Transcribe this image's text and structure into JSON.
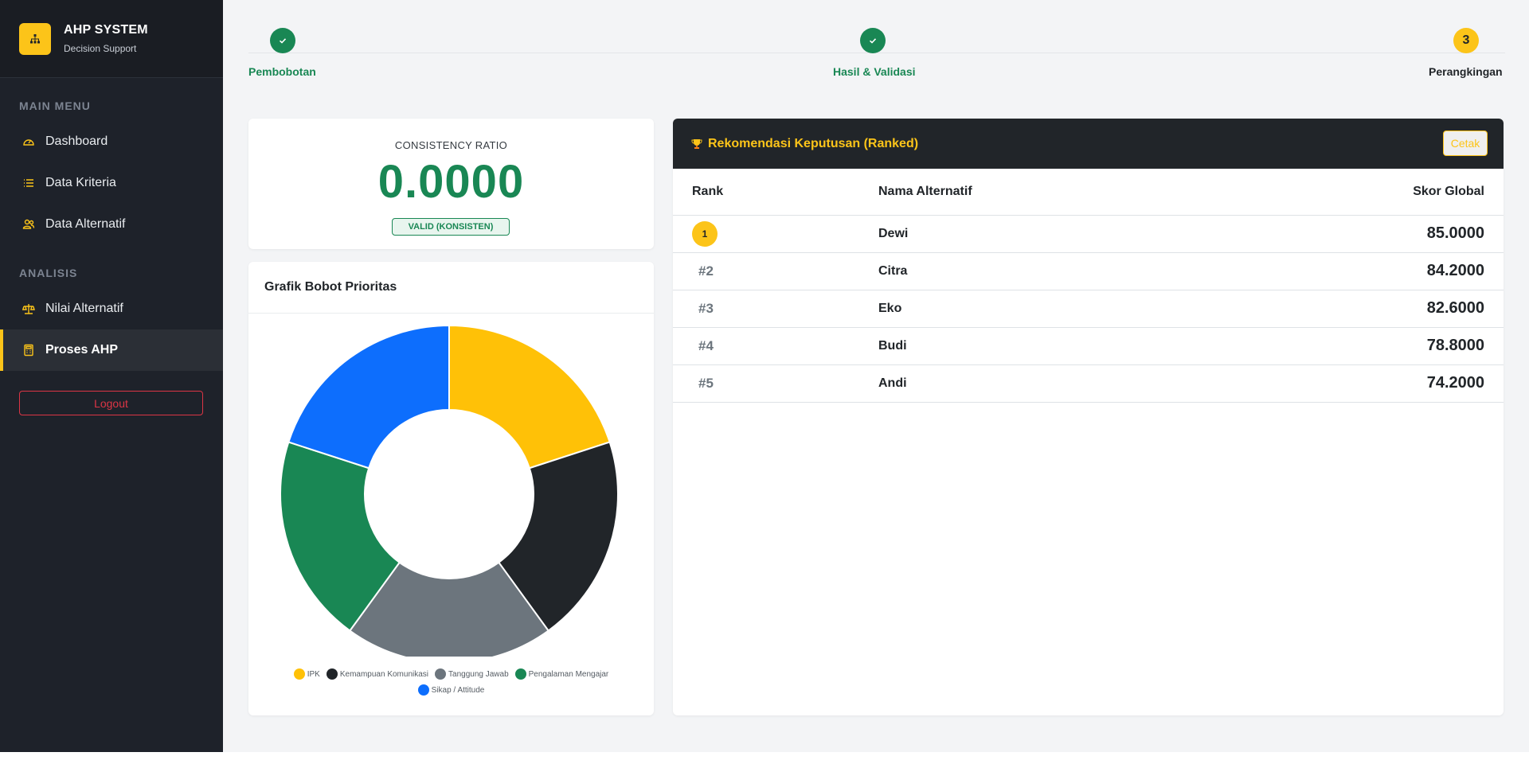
{
  "brand": {
    "title": "AHP SYSTEM",
    "subtitle": "Decision Support"
  },
  "sidebar": {
    "sections": [
      {
        "label": "MAIN MENU"
      },
      {
        "label": "ANALISIS"
      }
    ],
    "items": [
      {
        "label": "Dashboard",
        "icon": "speedometer-icon"
      },
      {
        "label": "Data Kriteria",
        "icon": "list-icon"
      },
      {
        "label": "Data Alternatif",
        "icon": "people-icon"
      },
      {
        "label": "Nilai Alternatif",
        "icon": "scale-icon"
      },
      {
        "label": "Proses AHP",
        "icon": "calculator-icon",
        "active": true
      }
    ],
    "logout_label": "Logout"
  },
  "stepper": {
    "steps": [
      {
        "label": "Pembobotan",
        "state": "done"
      },
      {
        "label": "Hasil & Validasi",
        "state": "done"
      },
      {
        "label": "Perangkingan",
        "state": "current",
        "number": "3"
      }
    ]
  },
  "consistency": {
    "title": "CONSISTENCY RATIO",
    "value": "0.0000",
    "badge": "VALID (KONSISTEN)"
  },
  "chart_card": {
    "title": "Grafik Bobot Prioritas"
  },
  "chart_data": {
    "type": "pie",
    "donut": true,
    "title": "",
    "categories": [
      "IPK",
      "Kemampuan Komunikasi",
      "Tanggung Jawab",
      "Pengalaman Mengajar",
      "Sikap / Attitude"
    ],
    "values": [
      0.2,
      0.2,
      0.2,
      0.2,
      0.2
    ],
    "colors": [
      "#ffc107",
      "#212529",
      "#6c757d",
      "#198754",
      "#0d6efd"
    ],
    "legend": "bottom"
  },
  "ranking": {
    "title": "Rekomendasi Keputusan (Ranked)",
    "print_label": "Cetak",
    "columns": [
      "Rank",
      "Nama Alternatif",
      "Skor Global"
    ],
    "rows": [
      {
        "rank": "1",
        "name": "Dewi",
        "score": "85.0000"
      },
      {
        "rank": "#2",
        "name": "Citra",
        "score": "84.2000"
      },
      {
        "rank": "#3",
        "name": "Eko",
        "score": "82.6000"
      },
      {
        "rank": "#4",
        "name": "Budi",
        "score": "78.8000"
      },
      {
        "rank": "#5",
        "name": "Andi",
        "score": "74.2000"
      }
    ]
  },
  "colors": {
    "accent": "#fcc419",
    "success": "#198754",
    "danger": "#dc3545",
    "sidebar_bg": "#1e222a"
  }
}
